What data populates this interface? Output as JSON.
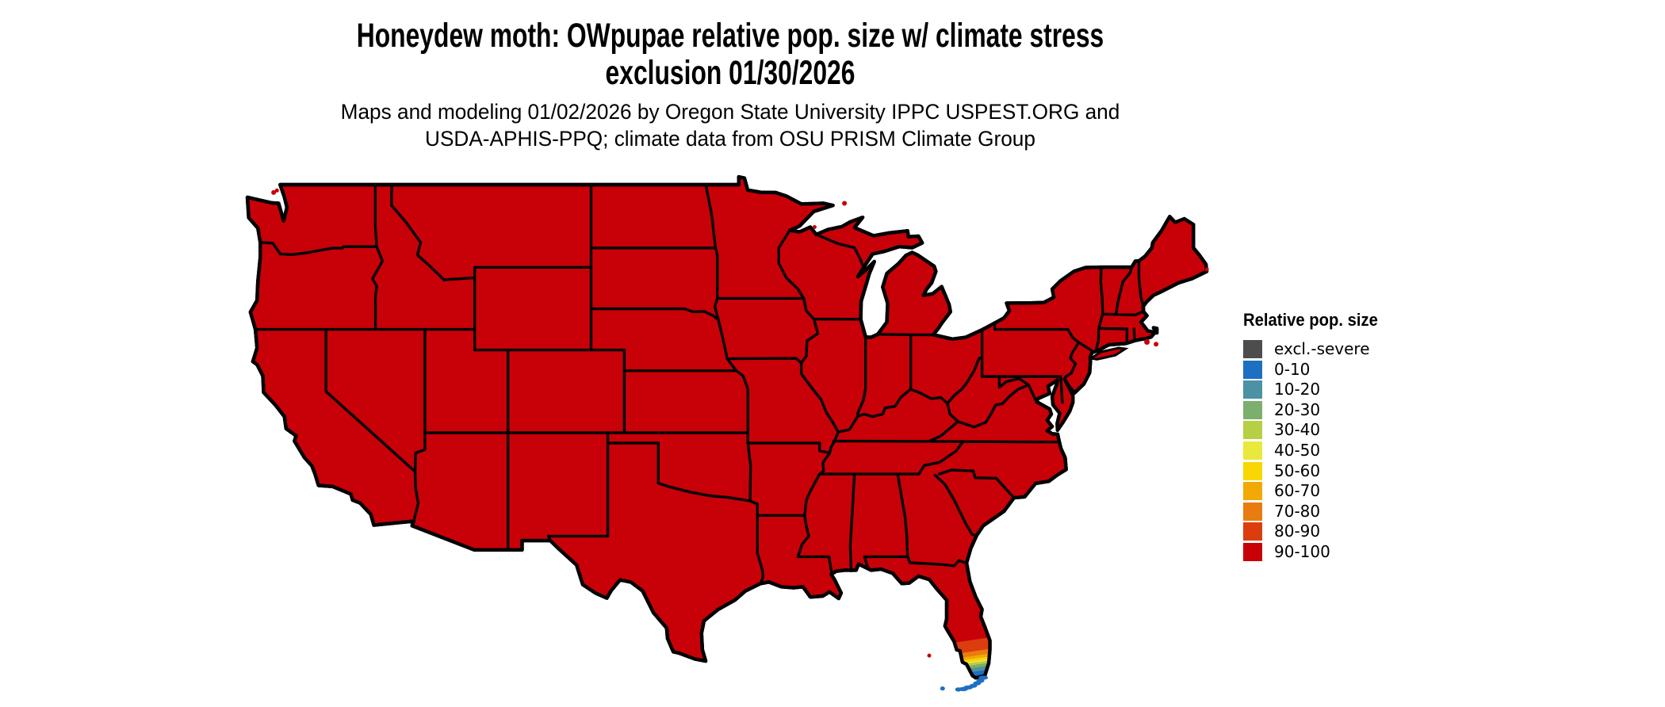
{
  "title": {
    "line1": "Honeydew moth: OWpupae relative pop. size w/ climate stress",
    "line2": "exclusion 01/30/2026"
  },
  "subtitle": {
    "line1": "Maps and modeling 01/02/2026 by Oregon State University IPPC USPEST.ORG and",
    "line2": "USDA-APHIS-PPQ; climate data from OSU PRISM Climate Group"
  },
  "legend": {
    "title": "Relative pop. size",
    "entries": [
      {
        "label": "excl.-severe",
        "color": "#4d4d4d"
      },
      {
        "label": "0-10",
        "color": "#1d6fc2"
      },
      {
        "label": "10-20",
        "color": "#4b92a5"
      },
      {
        "label": "20-30",
        "color": "#7cae6c"
      },
      {
        "label": "30-40",
        "color": "#b7cf45"
      },
      {
        "label": "40-50",
        "color": "#e9e93d"
      },
      {
        "label": "50-60",
        "color": "#f8d703"
      },
      {
        "label": "60-70",
        "color": "#f1a905"
      },
      {
        "label": "70-80",
        "color": "#e97c10"
      },
      {
        "label": "80-90",
        "color": "#dc3d0e"
      },
      {
        "label": "90-100",
        "color": "#c80008"
      }
    ]
  },
  "map": {
    "type": "choropleth",
    "region": "Contiguous United States",
    "border_color": "#000000",
    "background_color": "#ffffff",
    "dominant_class": "90-100",
    "gradient_classes_south_florida": [
      "80-90",
      "70-80",
      "60-70",
      "50-60",
      "40-50",
      "30-40",
      "20-30",
      "10-20",
      "0-10"
    ],
    "florida_keys_class": "0-10"
  }
}
